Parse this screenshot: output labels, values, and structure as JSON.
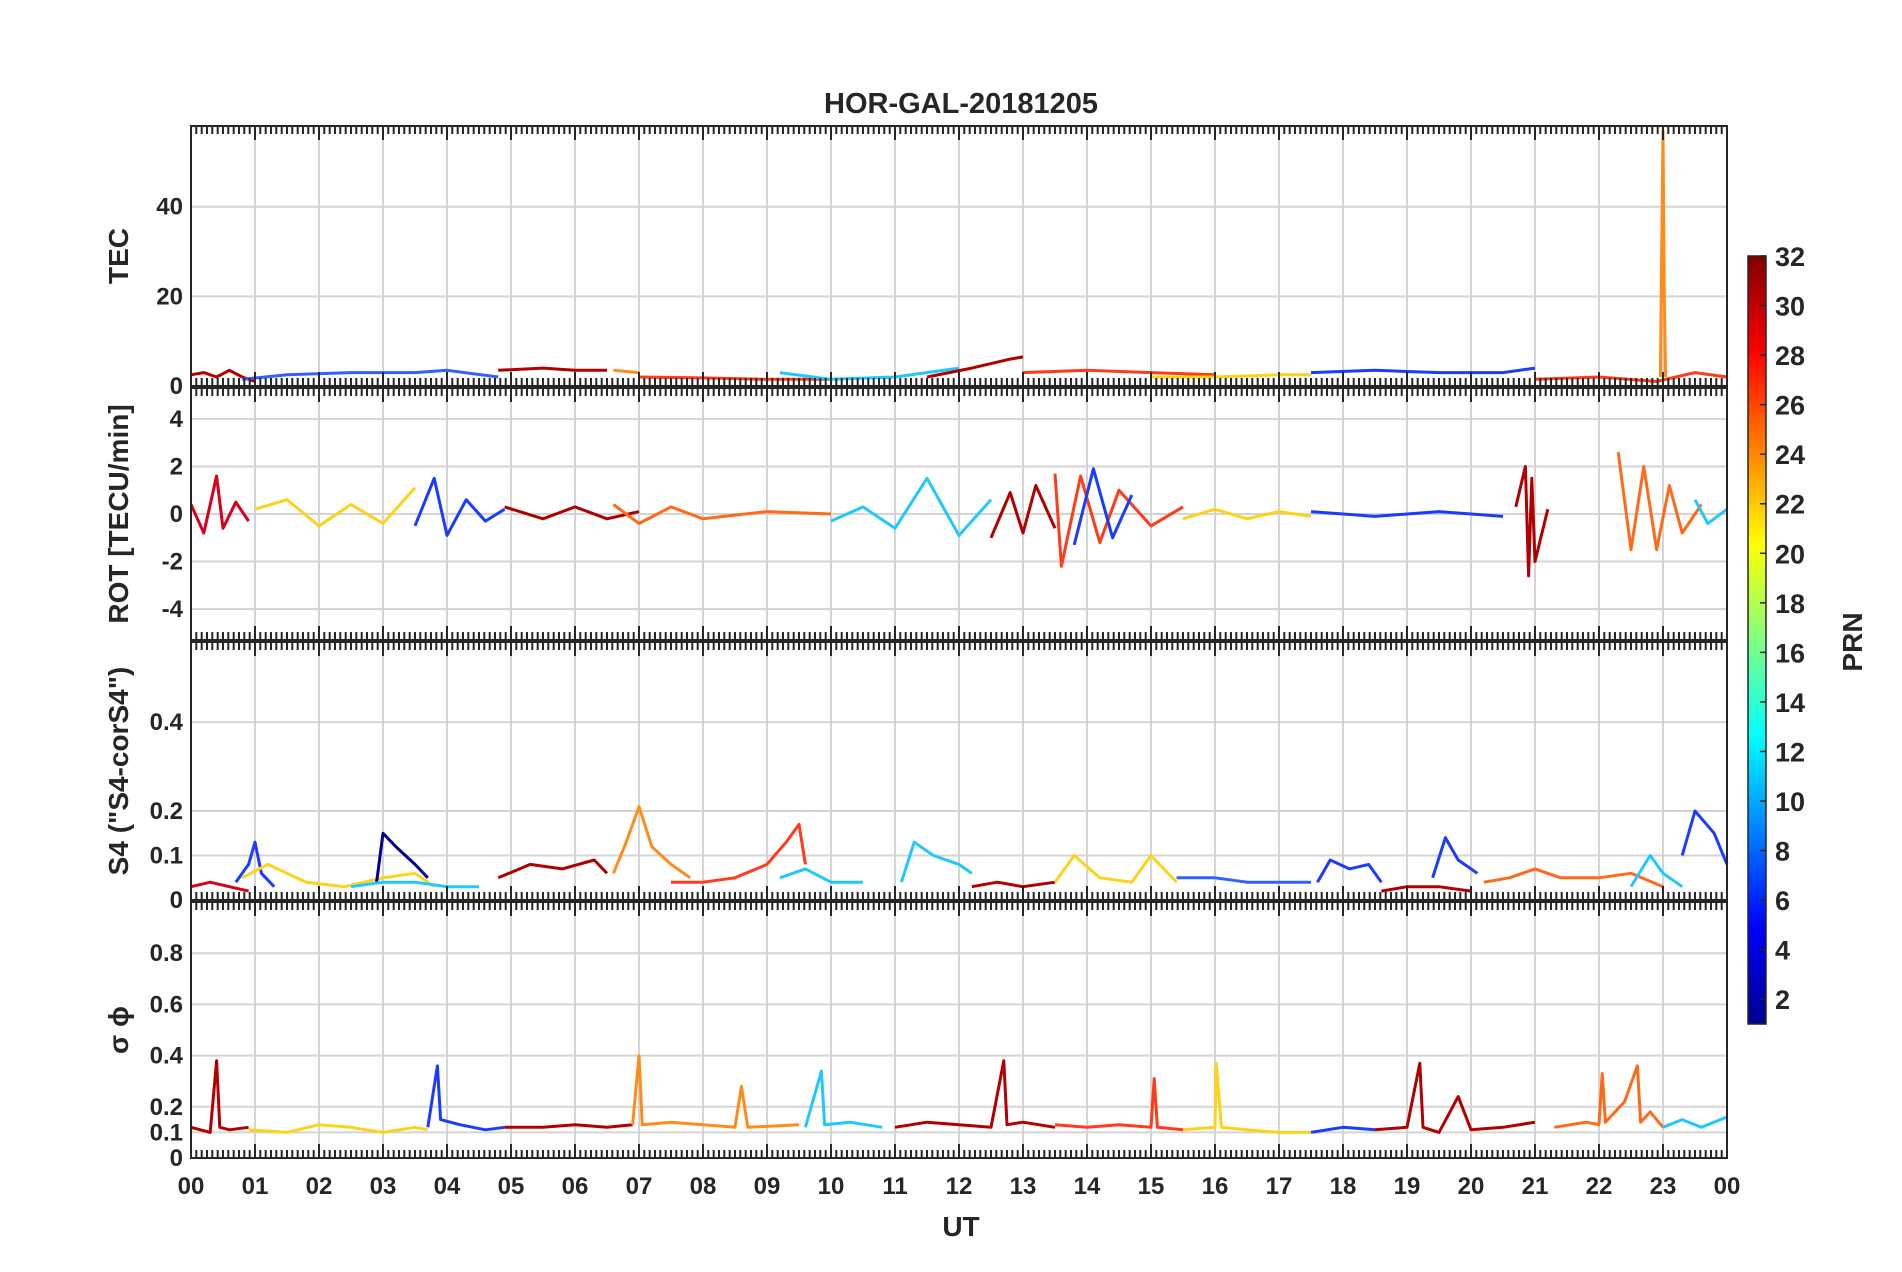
{
  "figure": {
    "title": "HOR-GAL-20181205",
    "x_label": "UT",
    "x_tick_labels": [
      "00",
      "01",
      "02",
      "03",
      "04",
      "05",
      "06",
      "07",
      "08",
      "09",
      "10",
      "11",
      "12",
      "13",
      "14",
      "15",
      "16",
      "17",
      "18",
      "19",
      "20",
      "21",
      "22",
      "23",
      "00"
    ],
    "colorbar": {
      "label": "PRN",
      "range": [
        1,
        32
      ],
      "tick_values": [
        2,
        4,
        6,
        8,
        10,
        12,
        14,
        16,
        18,
        20,
        22,
        24,
        26,
        28,
        30,
        32
      ],
      "tick_labels": [
        "2",
        "4",
        "6",
        "8",
        "10",
        "12",
        "14",
        "16",
        "18",
        "20",
        "22",
        "24",
        "26",
        "28",
        "30",
        "32"
      ],
      "colormap": "jet"
    }
  },
  "chart_data": [
    {
      "type": "line",
      "panel": "TEC",
      "ylabel": "TEC",
      "xlim": [
        0,
        24
      ],
      "ylim": [
        0,
        58
      ],
      "yticks": [
        0,
        20,
        40
      ],
      "ytick_labels": [
        "0",
        "20",
        "40"
      ],
      "grid": true,
      "series": [
        {
          "color": "#b00000",
          "x": [
            0.0,
            0.2,
            0.4,
            0.6,
            0.8,
            1.0
          ],
          "y": [
            2.5,
            3,
            2,
            3.5,
            2,
            1
          ]
        },
        {
          "color": "#3060ff",
          "x": [
            0.8,
            1.5,
            2.5,
            3.5,
            4.0,
            4.8
          ],
          "y": [
            1.5,
            2.5,
            3,
            3,
            3.5,
            2
          ]
        },
        {
          "color": "#b00000",
          "x": [
            4.8,
            5.5,
            6.0,
            6.5
          ],
          "y": [
            3.5,
            4,
            3.5,
            3.5
          ]
        },
        {
          "color": "#ff8c1a",
          "x": [
            6.6,
            7.0
          ],
          "y": [
            3.5,
            3
          ]
        },
        {
          "color": "#ff3b1a",
          "x": [
            7.0,
            8.0,
            9.0,
            10.0
          ],
          "y": [
            2,
            1.8,
            1.5,
            1.5
          ]
        },
        {
          "color": "#20c8ff",
          "x": [
            9.2,
            10.0,
            11.0,
            12.0
          ],
          "y": [
            3,
            1.5,
            2,
            4
          ]
        },
        {
          "color": "#b00000",
          "x": [
            11.5,
            12.2,
            12.8,
            13.0
          ],
          "y": [
            2,
            4,
            6,
            6.5
          ]
        },
        {
          "color": "#ff3b1a",
          "x": [
            13.0,
            14.0,
            15.0,
            16.0
          ],
          "y": [
            3,
            3.5,
            3,
            2.5
          ]
        },
        {
          "color": "#ffd21a",
          "x": [
            15.0,
            16.0,
            17.0,
            17.5
          ],
          "y": [
            2,
            2,
            2.5,
            2.5
          ]
        },
        {
          "color": "#1a3cff",
          "x": [
            17.5,
            18.5,
            19.5,
            20.5,
            21.0
          ],
          "y": [
            3,
            3.5,
            3,
            3,
            4
          ]
        },
        {
          "color": "#ff3b1a",
          "x": [
            21.0,
            22.0,
            22.9,
            23.5,
            24.0
          ],
          "y": [
            1.5,
            2,
            1,
            3,
            2
          ]
        },
        {
          "color": "#ff8c1a",
          "x": [
            22.96,
            22.98,
            23.0,
            23.02,
            23.04
          ],
          "y": [
            2,
            30,
            57,
            20,
            2
          ]
        }
      ]
    },
    {
      "type": "line",
      "panel": "ROT",
      "ylabel": "ROT [TECU/min]",
      "xlim": [
        0,
        24
      ],
      "ylim": [
        -5.3,
        5.3
      ],
      "yticks": [
        -4,
        -2,
        0,
        2,
        4
      ],
      "ytick_labels": [
        "-4",
        "-2",
        "0",
        "2",
        "4"
      ],
      "grid": true,
      "series": [
        {
          "color": "#d8001a",
          "x": [
            0.0,
            0.2,
            0.4,
            0.5,
            0.7,
            0.9
          ],
          "y": [
            0.4,
            -0.8,
            1.6,
            -0.6,
            0.5,
            -0.3
          ]
        },
        {
          "color": "#ffd21a",
          "x": [
            1.0,
            1.5,
            2.0,
            2.5,
            3.0,
            3.5
          ],
          "y": [
            0.2,
            0.6,
            -0.5,
            0.4,
            -0.4,
            1.1
          ]
        },
        {
          "color": "#1a3cff",
          "x": [
            3.5,
            3.8,
            4.0,
            4.3,
            4.6,
            4.9
          ],
          "y": [
            -0.5,
            1.5,
            -0.9,
            0.6,
            -0.3,
            0.2
          ]
        },
        {
          "color": "#b00000",
          "x": [
            4.9,
            5.5,
            6.0,
            6.5,
            7.0
          ],
          "y": [
            0.3,
            -0.2,
            0.3,
            -0.2,
            0.1
          ]
        },
        {
          "color": "#ff6a1a",
          "x": [
            6.6,
            7.0,
            7.5,
            8.0,
            9.0,
            10.0
          ],
          "y": [
            0.4,
            -0.4,
            0.3,
            -0.2,
            0.1,
            0.0
          ]
        },
        {
          "color": "#20c8ff",
          "x": [
            10.0,
            10.5,
            11.0,
            11.5,
            12.0,
            12.5
          ],
          "y": [
            -0.3,
            0.3,
            -0.6,
            1.5,
            -0.9,
            0.6
          ]
        },
        {
          "color": "#b00000",
          "x": [
            12.5,
            12.8,
            13.0,
            13.2,
            13.5
          ],
          "y": [
            -1.0,
            0.9,
            -0.8,
            1.2,
            -0.6
          ]
        },
        {
          "color": "#ff3b1a",
          "x": [
            13.5,
            13.6,
            13.9,
            14.2,
            14.5,
            15.0,
            15.5
          ],
          "y": [
            1.7,
            -2.2,
            1.6,
            -1.2,
            1.0,
            -0.5,
            0.3
          ]
        },
        {
          "color": "#1a3cff",
          "x": [
            13.8,
            14.1,
            14.4,
            14.7
          ],
          "y": [
            -1.3,
            1.9,
            -1.0,
            0.8
          ]
        },
        {
          "color": "#ffd21a",
          "x": [
            15.5,
            16.0,
            16.5,
            17.0,
            17.5
          ],
          "y": [
            -0.2,
            0.2,
            -0.2,
            0.1,
            -0.1
          ]
        },
        {
          "color": "#1a3cff",
          "x": [
            17.5,
            18.5,
            19.5,
            20.5
          ],
          "y": [
            0.1,
            -0.1,
            0.1,
            -0.1
          ]
        },
        {
          "color": "#b00000",
          "x": [
            20.7,
            20.85,
            20.9,
            20.95,
            21.0,
            21.2
          ],
          "y": [
            0.3,
            2.0,
            -2.6,
            1.5,
            -2.0,
            0.2
          ]
        },
        {
          "color": "#ff6a1a",
          "x": [
            22.3,
            22.5,
            22.7,
            22.9,
            23.1,
            23.3,
            23.6
          ],
          "y": [
            2.6,
            -1.5,
            2.0,
            -1.5,
            1.2,
            -0.8,
            0.4
          ]
        },
        {
          "color": "#20c8ff",
          "x": [
            23.5,
            23.7,
            24.0
          ],
          "y": [
            0.6,
            -0.4,
            0.2
          ]
        }
      ]
    },
    {
      "type": "line",
      "panel": "S4",
      "ylabel": "S4 (\"S4-corS4\")",
      "xlim": [
        0,
        24
      ],
      "ylim": [
        0,
        0.58
      ],
      "yticks": [
        0,
        0.1,
        0.2,
        0.4
      ],
      "ytick_labels": [
        "0",
        "0.1",
        "0.2",
        "0.4"
      ],
      "grid": true,
      "series": [
        {
          "color": "#d8001a",
          "x": [
            0.0,
            0.3,
            0.6,
            0.9
          ],
          "y": [
            0.03,
            0.04,
            0.03,
            0.02
          ]
        },
        {
          "color": "#1a3cff",
          "x": [
            0.7,
            0.9,
            1.0,
            1.1,
            1.3
          ],
          "y": [
            0.04,
            0.08,
            0.13,
            0.06,
            0.03
          ]
        },
        {
          "color": "#ffd21a",
          "x": [
            0.8,
            1.2,
            1.8,
            2.4,
            3.0,
            3.5,
            3.8
          ],
          "y": [
            0.05,
            0.08,
            0.04,
            0.03,
            0.05,
            0.06,
            0.03
          ]
        },
        {
          "color": "#00008b",
          "x": [
            2.9,
            3.0,
            3.2,
            3.5,
            3.7
          ],
          "y": [
            0.04,
            0.15,
            0.12,
            0.08,
            0.05
          ]
        },
        {
          "color": "#20c8ff",
          "x": [
            2.5,
            3.0,
            3.5,
            4.0,
            4.5
          ],
          "y": [
            0.03,
            0.04,
            0.04,
            0.03,
            0.03
          ]
        },
        {
          "color": "#b00000",
          "x": [
            4.8,
            5.3,
            5.8,
            6.3,
            6.5
          ],
          "y": [
            0.05,
            0.08,
            0.07,
            0.09,
            0.06
          ]
        },
        {
          "color": "#ff8c1a",
          "x": [
            6.6,
            6.8,
            7.0,
            7.2,
            7.5,
            7.8
          ],
          "y": [
            0.06,
            0.13,
            0.21,
            0.12,
            0.08,
            0.05
          ]
        },
        {
          "color": "#ff3b1a",
          "x": [
            7.5,
            8.0,
            8.5,
            9.0,
            9.3,
            9.5,
            9.6
          ],
          "y": [
            0.04,
            0.04,
            0.05,
            0.08,
            0.13,
            0.17,
            0.08
          ]
        },
        {
          "color": "#20c8ff",
          "x": [
            9.2,
            9.6,
            10.0,
            10.5
          ],
          "y": [
            0.05,
            0.07,
            0.04,
            0.04
          ]
        },
        {
          "color": "#20c8ff",
          "x": [
            11.1,
            11.3,
            11.6,
            12.0,
            12.2
          ],
          "y": [
            0.04,
            0.13,
            0.1,
            0.08,
            0.06
          ]
        },
        {
          "color": "#b00000",
          "x": [
            12.2,
            12.6,
            13.0,
            13.5
          ],
          "y": [
            0.03,
            0.04,
            0.03,
            0.04
          ]
        },
        {
          "color": "#ffd21a",
          "x": [
            13.5,
            13.8,
            14.2,
            14.7,
            15.0,
            15.4
          ],
          "y": [
            0.04,
            0.1,
            0.05,
            0.04,
            0.1,
            0.04
          ]
        },
        {
          "color": "#3060ff",
          "x": [
            15.4,
            16.0,
            16.5,
            17.0,
            17.5
          ],
          "y": [
            0.05,
            0.05,
            0.04,
            0.04,
            0.04
          ]
        },
        {
          "color": "#1a3cff",
          "x": [
            17.6,
            17.8,
            18.1,
            18.4,
            18.6
          ],
          "y": [
            0.04,
            0.09,
            0.07,
            0.08,
            0.04
          ]
        },
        {
          "color": "#b00000",
          "x": [
            18.6,
            19.0,
            19.5,
            20.0
          ],
          "y": [
            0.02,
            0.03,
            0.03,
            0.02
          ]
        },
        {
          "color": "#1a3cff",
          "x": [
            19.4,
            19.6,
            19.8,
            20.1
          ],
          "y": [
            0.05,
            0.14,
            0.09,
            0.06
          ]
        },
        {
          "color": "#ff6a1a",
          "x": [
            20.2,
            20.6,
            21.0,
            21.4,
            22.0,
            22.5,
            23.0
          ],
          "y": [
            0.04,
            0.05,
            0.07,
            0.05,
            0.05,
            0.06,
            0.03
          ]
        },
        {
          "color": "#20c8ff",
          "x": [
            22.5,
            22.8,
            23.0,
            23.3
          ],
          "y": [
            0.03,
            0.1,
            0.06,
            0.03
          ]
        },
        {
          "color": "#1a3cff",
          "x": [
            23.3,
            23.5,
            23.8,
            24.0
          ],
          "y": [
            0.1,
            0.2,
            0.15,
            0.08
          ]
        }
      ]
    },
    {
      "type": "line",
      "panel": "sigma_phi",
      "ylabel": "σ ϕ",
      "xlim": [
        0,
        24
      ],
      "ylim": [
        0,
        1.0
      ],
      "yticks": [
        0,
        0.1,
        0.2,
        0.4,
        0.6,
        0.8
      ],
      "ytick_labels": [
        "0",
        "0.1",
        "0.2",
        "0.4",
        "0.6",
        "0.8"
      ],
      "grid": true,
      "series": [
        {
          "color": "#b00000",
          "x": [
            0.0,
            0.3,
            0.4,
            0.45,
            0.6,
            0.9
          ],
          "y": [
            0.12,
            0.1,
            0.38,
            0.12,
            0.11,
            0.12
          ]
        },
        {
          "color": "#ffd21a",
          "x": [
            0.9,
            1.5,
            2.0,
            2.5,
            3.0,
            3.5,
            3.7
          ],
          "y": [
            0.11,
            0.1,
            0.13,
            0.12,
            0.1,
            0.12,
            0.11
          ]
        },
        {
          "color": "#1a3cff",
          "x": [
            3.7,
            3.85,
            3.9,
            4.2,
            4.6,
            4.9
          ],
          "y": [
            0.12,
            0.36,
            0.15,
            0.13,
            0.11,
            0.12
          ]
        },
        {
          "color": "#b00000",
          "x": [
            4.9,
            5.5,
            6.0,
            6.5,
            6.9
          ],
          "y": [
            0.12,
            0.12,
            0.13,
            0.12,
            0.13
          ]
        },
        {
          "color": "#ff8c1a",
          "x": [
            6.9,
            7.0,
            7.05,
            7.5,
            8.0,
            8.5,
            8.6,
            8.7,
            9.5
          ],
          "y": [
            0.13,
            0.4,
            0.13,
            0.14,
            0.13,
            0.12,
            0.28,
            0.12,
            0.13
          ]
        },
        {
          "color": "#20c8ff",
          "x": [
            9.6,
            9.85,
            9.9,
            10.3,
            10.8
          ],
          "y": [
            0.12,
            0.34,
            0.13,
            0.14,
            0.12
          ]
        },
        {
          "color": "#b00000",
          "x": [
            11.0,
            11.5,
            12.0,
            12.5,
            12.7,
            12.75,
            13.0,
            13.5
          ],
          "y": [
            0.12,
            0.14,
            0.13,
            0.12,
            0.38,
            0.13,
            0.14,
            0.12
          ]
        },
        {
          "color": "#ff3b1a",
          "x": [
            13.5,
            14.0,
            14.5,
            15.0,
            15.05,
            15.1,
            15.5
          ],
          "y": [
            0.13,
            0.12,
            0.13,
            0.12,
            0.31,
            0.12,
            0.11
          ]
        },
        {
          "color": "#ffd21a",
          "x": [
            15.5,
            16.0,
            16.02,
            16.1,
            16.5,
            17.0,
            17.5
          ],
          "y": [
            0.11,
            0.12,
            0.37,
            0.12,
            0.11,
            0.1,
            0.1
          ]
        },
        {
          "color": "#1a3cff",
          "x": [
            17.5,
            18.0,
            18.5
          ],
          "y": [
            0.1,
            0.12,
            0.11
          ]
        },
        {
          "color": "#b00000",
          "x": [
            18.5,
            19.0,
            19.2,
            19.25,
            19.5,
            19.8,
            20.0,
            20.5,
            21.0
          ],
          "y": [
            0.11,
            0.12,
            0.37,
            0.12,
            0.1,
            0.24,
            0.11,
            0.12,
            0.14
          ]
        },
        {
          "color": "#ff6a1a",
          "x": [
            21.3,
            21.8,
            22.0,
            22.05,
            22.1,
            22.4,
            22.6,
            22.65,
            22.8,
            23.0
          ],
          "y": [
            0.12,
            0.14,
            0.13,
            0.33,
            0.14,
            0.22,
            0.36,
            0.14,
            0.18,
            0.12
          ]
        },
        {
          "color": "#20c8ff",
          "x": [
            23.0,
            23.3,
            23.6,
            24.0
          ],
          "y": [
            0.12,
            0.15,
            0.12,
            0.16
          ]
        }
      ]
    }
  ]
}
